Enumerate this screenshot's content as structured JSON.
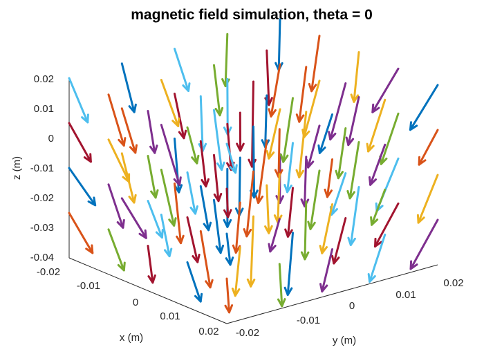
{
  "chart_data": {
    "type": "quiver3d",
    "title": "magnetic field simulation, theta = 0",
    "xlabel": "x (m)",
    "ylabel": "y (m)",
    "zlabel": "z (m)",
    "xlim": [
      -0.02,
      0.02
    ],
    "ylim": [
      -0.02,
      0.02
    ],
    "zlim": [
      -0.04,
      0.02
    ],
    "x_ticks": [
      "-0.02",
      "-0.01",
      "0",
      "0.01",
      "0.02"
    ],
    "y_ticks": [
      "-0.02",
      "-0.01",
      "0",
      "0.01",
      "0.02"
    ],
    "z_ticks": [
      "0.02",
      "0.01",
      "0",
      "-0.01",
      "-0.02",
      "-0.03",
      "-0.04"
    ],
    "grid_points_per_axis": 5,
    "arrow_direction": "predominantly -z",
    "series_colors": [
      "#0072BD",
      "#D95319",
      "#EDB120",
      "#7E2F8E",
      "#77AC30",
      "#4DBEEE",
      "#A2142F"
    ],
    "grid": false,
    "legend": "none"
  }
}
